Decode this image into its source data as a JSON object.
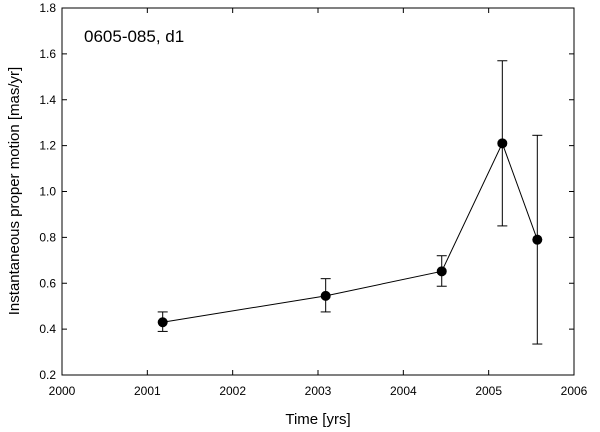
{
  "chart_data": {
    "type": "scatter",
    "annotation": "0605-085, d1",
    "xlabel": "Time [yrs]",
    "ylabel": "Instantaneous proper motion [mas/yr]",
    "xlim": [
      2000,
      2006
    ],
    "ylim": [
      0.2,
      1.8
    ],
    "xticks": [
      2000,
      2001,
      2002,
      2003,
      2004,
      2005,
      2006
    ],
    "yticks": [
      0.2,
      0.4,
      0.6,
      0.8,
      1.0,
      1.2,
      1.4,
      1.6,
      1.8
    ],
    "ytick_labels": [
      "0.2",
      "0.4",
      "0.6",
      "0.8",
      "1.0",
      "1.2",
      "1.4",
      "1.6",
      "1.8"
    ],
    "grid": false,
    "legend": "none",
    "series": [
      {
        "connected": true,
        "points": [
          {
            "x": 2001.18,
            "y": 0.43,
            "err_low": 0.39,
            "err_high": 0.475
          },
          {
            "x": 2003.09,
            "y": 0.545,
            "err_low": 0.475,
            "err_high": 0.62
          },
          {
            "x": 2004.45,
            "y": 0.652,
            "err_low": 0.587,
            "err_high": 0.72
          },
          {
            "x": 2005.16,
            "y": 1.21,
            "err_low": 0.85,
            "err_high": 1.57
          },
          {
            "x": 2005.57,
            "y": 0.79,
            "err_low": 0.335,
            "err_high": 1.245
          }
        ]
      }
    ]
  }
}
